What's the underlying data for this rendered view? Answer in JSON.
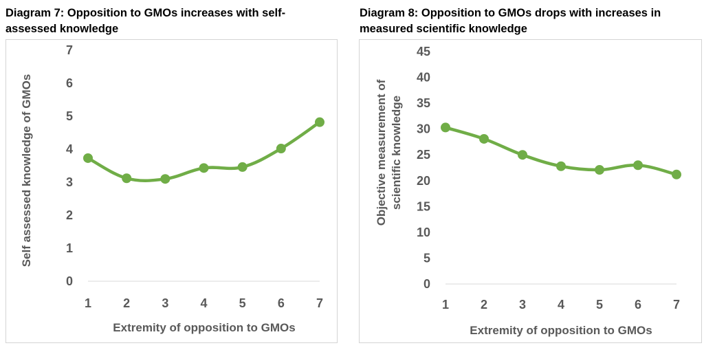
{
  "chart_data": [
    {
      "type": "line",
      "title": "Diagram 7: Opposition to GMOs increases with self-assessed knowledge",
      "xlabel": "Extremity of opposition to GMOs",
      "ylabel": "Self assessed knowledge of GMOs",
      "x": [
        1,
        2,
        3,
        4,
        5,
        6,
        7
      ],
      "values": [
        3.73,
        3.12,
        3.1,
        3.43,
        3.46,
        4.02,
        4.82
      ],
      "ylim": [
        0,
        7
      ],
      "yticks": [
        0,
        1,
        2,
        3,
        4,
        5,
        6,
        7
      ],
      "grid": false,
      "color": "#70ad47"
    },
    {
      "type": "line",
      "title": "Diagram 8: Opposition to GMOs drops with increases in measured scientific knowledge",
      "xlabel": "Extremity of opposition to GMOs",
      "ylabel": [
        "Objective measurement of",
        "scientific knowledge"
      ],
      "x": [
        1,
        2,
        3,
        4,
        5,
        6,
        7
      ],
      "values": [
        30.3,
        28.1,
        25.0,
        22.8,
        22.1,
        23.0,
        21.2
      ],
      "ylim": [
        0,
        45
      ],
      "yticks": [
        0,
        5,
        10,
        15,
        20,
        25,
        30,
        35,
        40,
        45
      ],
      "grid": false,
      "color": "#70ad47"
    }
  ]
}
